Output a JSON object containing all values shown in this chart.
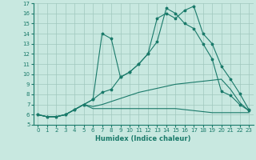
{
  "xlabel": "Humidex (Indice chaleur)",
  "ylabel": "",
  "bg_color": "#c8e8e0",
  "line_color": "#1a7a6a",
  "grid_color": "#a0c8be",
  "xlim": [
    -0.5,
    23.5
  ],
  "ylim": [
    5,
    17
  ],
  "xticks": [
    0,
    1,
    2,
    3,
    4,
    5,
    6,
    7,
    8,
    9,
    10,
    11,
    12,
    13,
    14,
    15,
    16,
    17,
    18,
    19,
    20,
    21,
    22,
    23
  ],
  "yticks": [
    5,
    6,
    7,
    8,
    9,
    10,
    11,
    12,
    13,
    14,
    15,
    16,
    17
  ],
  "line1_x": [
    0,
    1,
    2,
    3,
    4,
    5,
    6,
    7,
    8,
    9,
    10,
    11,
    12,
    13,
    14,
    15,
    16,
    17,
    18,
    19,
    20,
    21,
    22,
    23
  ],
  "line1_y": [
    6,
    5.8,
    5.8,
    6.0,
    6.5,
    7.0,
    7.5,
    8.2,
    8.5,
    9.7,
    10.2,
    11.0,
    12.0,
    15.5,
    16.0,
    15.5,
    16.3,
    16.7,
    14.0,
    13.0,
    10.8,
    9.5,
    8.1,
    6.5
  ],
  "line2_x": [
    0,
    1,
    2,
    3,
    4,
    5,
    6,
    7,
    8,
    9,
    10,
    11,
    12,
    13,
    14,
    15,
    16,
    17,
    18,
    19,
    20,
    21,
    22,
    23
  ],
  "line2_y": [
    6,
    5.8,
    5.8,
    6.0,
    6.5,
    7.0,
    7.5,
    14.0,
    13.5,
    9.7,
    10.2,
    11.0,
    12.0,
    13.2,
    16.5,
    16.0,
    15.0,
    14.5,
    13.0,
    11.5,
    8.3,
    7.9,
    7.0,
    6.4
  ],
  "line3_x": [
    0,
    1,
    2,
    3,
    4,
    5,
    6,
    7,
    8,
    9,
    10,
    11,
    12,
    13,
    14,
    15,
    16,
    17,
    18,
    19,
    20,
    21,
    22,
    23
  ],
  "line3_y": [
    6,
    5.8,
    5.8,
    6.0,
    6.5,
    7.0,
    6.6,
    6.6,
    6.6,
    6.6,
    6.6,
    6.6,
    6.6,
    6.6,
    6.6,
    6.6,
    6.5,
    6.4,
    6.3,
    6.2,
    6.2,
    6.2,
    6.2,
    6.2
  ],
  "line4_x": [
    0,
    1,
    2,
    3,
    4,
    5,
    6,
    7,
    8,
    9,
    10,
    11,
    12,
    13,
    14,
    15,
    16,
    17,
    18,
    19,
    20,
    21,
    22,
    23
  ],
  "line4_y": [
    6,
    5.8,
    5.8,
    6.0,
    6.5,
    7.0,
    6.8,
    7.0,
    7.3,
    7.6,
    7.9,
    8.2,
    8.4,
    8.6,
    8.8,
    9.0,
    9.1,
    9.2,
    9.3,
    9.4,
    9.5,
    8.5,
    7.2,
    6.4
  ]
}
